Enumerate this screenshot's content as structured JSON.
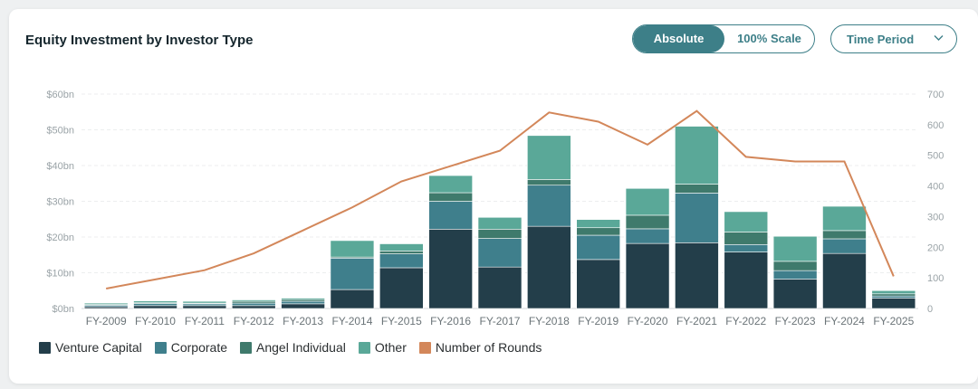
{
  "title": "Equity Investment by Investor Type",
  "controls": {
    "absolute_label": "Absolute",
    "scale_label": "100% Scale",
    "period_label": "Time Period"
  },
  "colors": {
    "accent": "#3d7f88",
    "venture_capital": "#233e4a",
    "corporate": "#3f7f8c",
    "angel_individual": "#3f7a6c",
    "other": "#5aa898",
    "rounds": "#d3875a"
  },
  "legend": [
    "Venture Capital",
    "Corporate",
    "Angel Individual",
    "Other",
    "Number of Rounds"
  ],
  "chart_data": {
    "type": "bar",
    "stacked": true,
    "categories": [
      "FY-2009",
      "FY-2010",
      "FY-2011",
      "FY-2012",
      "FY-2013",
      "FY-2014",
      "FY-2015",
      "FY-2016",
      "FY-2017",
      "FY-2018",
      "FY-2019",
      "FY-2020",
      "FY-2021",
      "FY-2022",
      "FY-2023",
      "FY-2024",
      "FY-2025"
    ],
    "series": [
      {
        "name": "Venture Capital",
        "values": [
          0.5,
          0.8,
          0.8,
          0.8,
          1.3,
          5.3,
          11.4,
          22.2,
          11.6,
          23.0,
          13.7,
          18.2,
          18.4,
          15.8,
          8.2,
          15.4,
          2.9
        ]
      },
      {
        "name": "Corporate",
        "values": [
          0.4,
          0.6,
          0.5,
          0.7,
          0.7,
          8.8,
          3.9,
          7.8,
          8.0,
          11.5,
          6.8,
          4.1,
          13.9,
          2.1,
          2.4,
          4.1,
          0.6
        ]
      },
      {
        "name": "Angel Individual",
        "values": [
          0.2,
          0.2,
          0.2,
          0.5,
          0.5,
          0.3,
          0.8,
          2.4,
          2.6,
          1.6,
          2.1,
          3.8,
          2.5,
          3.5,
          2.6,
          2.3,
          0.6
        ]
      },
      {
        "name": "Other",
        "values": [
          0.4,
          0.5,
          0.5,
          0.4,
          0.4,
          4.6,
          2.0,
          4.8,
          3.3,
          12.3,
          2.3,
          7.5,
          16.2,
          5.7,
          7.0,
          6.8,
          0.9
        ]
      },
      {
        "name": "Number of Rounds",
        "type": "line",
        "axis": "right",
        "values": [
          65,
          95,
          125,
          180,
          255,
          330,
          415,
          465,
          515,
          640,
          610,
          535,
          645,
          495,
          480,
          480,
          105
        ]
      }
    ],
    "y_left": {
      "min": 0,
      "max": 60,
      "ticks": [
        0,
        10,
        20,
        30,
        40,
        50,
        60
      ],
      "tick_labels": [
        "$0bn",
        "$10bn",
        "$20bn",
        "$30bn",
        "$40bn",
        "$50bn",
        "$60bn"
      ]
    },
    "y_right": {
      "min": 0,
      "max": 700,
      "ticks": [
        0,
        100,
        200,
        300,
        400,
        500,
        600,
        700
      ],
      "tick_labels": [
        "0",
        "100",
        "200",
        "300",
        "400",
        "500",
        "600",
        "700"
      ]
    },
    "grid": true,
    "legend_position": "bottom-left"
  }
}
